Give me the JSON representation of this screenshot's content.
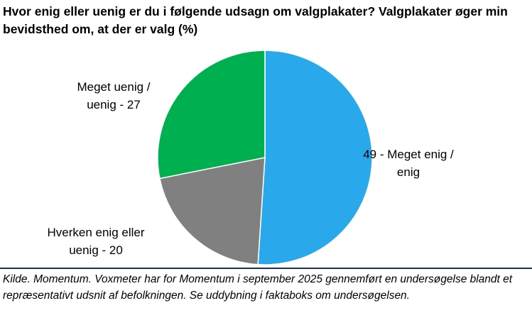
{
  "chart_data": {
    "type": "pie",
    "title": "Hvor enig eller uenig er du i følgende udsagn om valgplakater? Valgplakater øger min bevidsthed om, at der er valg (%)",
    "slices": [
      {
        "label": "49 - Meget enig / enig",
        "value": 49,
        "color": "#2AA8EC"
      },
      {
        "label": "Hverken enig eller uenig - 20",
        "value": 20,
        "color": "#808080"
      },
      {
        "label": "Meget uenig / uenig - 27",
        "value": 27,
        "color": "#00B050"
      }
    ],
    "start_angle": "12 o'clock",
    "direction": "clockwise"
  },
  "source": "Kilde. Momentum. Voxmeter har for Momentum i september 2025 gennemført en undersøgelse blandt et repræsentativt udsnit af befolkningen. Se uddybning i faktaboks om undersøgelsen."
}
